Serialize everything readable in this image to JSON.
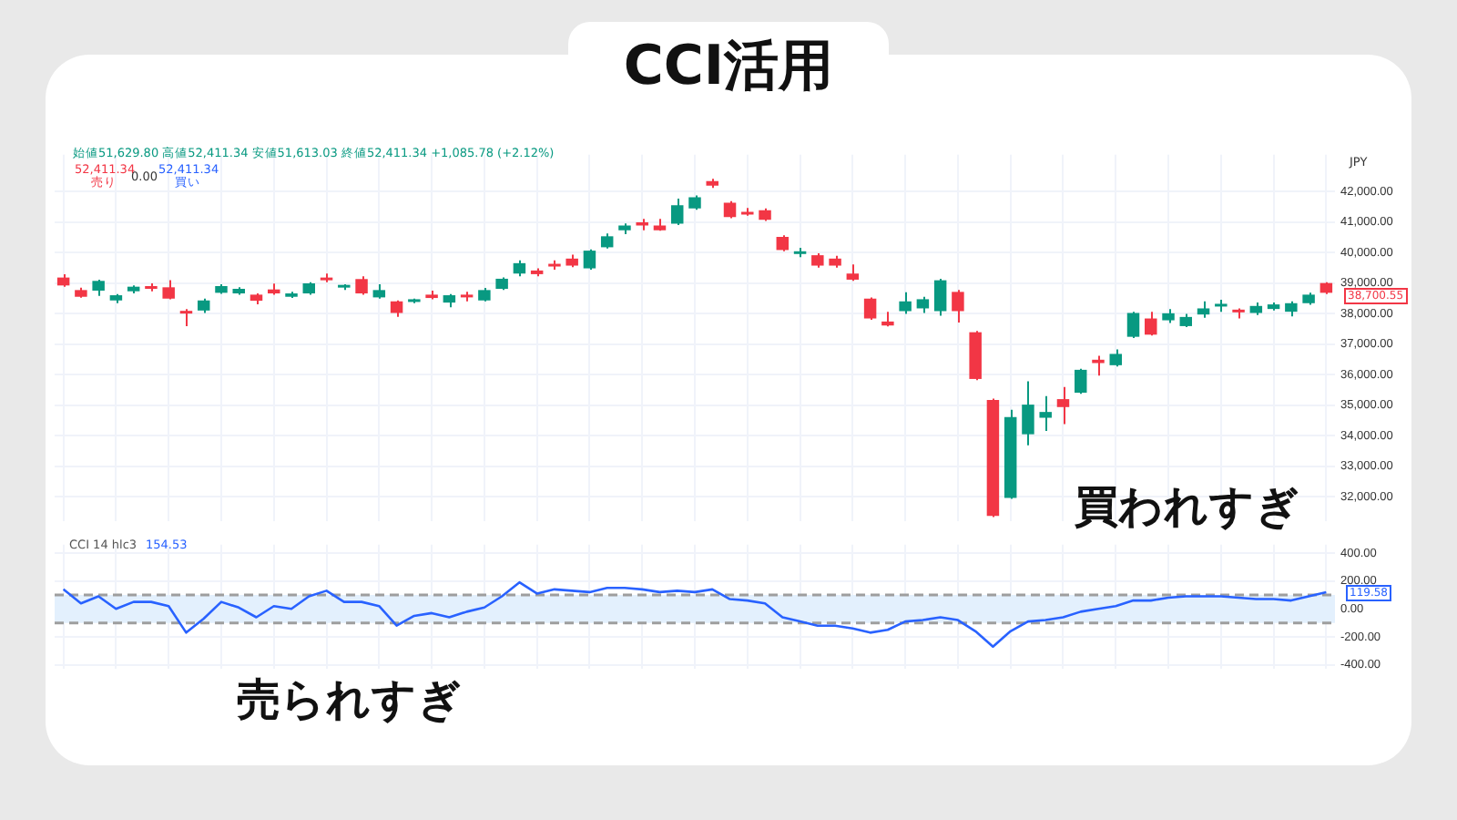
{
  "chart_data": [
    {
      "type": "candlestick",
      "title": "CCI活用",
      "categories": [
        null,
        null,
        null,
        null,
        null,
        null,
        null,
        null,
        null,
        null,
        null,
        null,
        null,
        null,
        null,
        null,
        null,
        null,
        null,
        null,
        null,
        null,
        null,
        null,
        null,
        null,
        null,
        null,
        null,
        null,
        null,
        null,
        null,
        null,
        null,
        null,
        null,
        null,
        null,
        null,
        null,
        null,
        null,
        null,
        null,
        null,
        null,
        null,
        null,
        null,
        null,
        null,
        null,
        null,
        null,
        null,
        null,
        null,
        null,
        null,
        null,
        null,
        null,
        null,
        null,
        null,
        null,
        null,
        null,
        null,
        null,
        null,
        null
      ],
      "ohlc": [
        [
          39180,
          39290,
          38880,
          38920
        ],
        [
          38770,
          38850,
          38520,
          38550
        ],
        [
          38750,
          39110,
          38580,
          39070
        ],
        [
          38430,
          38640,
          38340,
          38600
        ],
        [
          38730,
          38920,
          38660,
          38880
        ],
        [
          38880,
          38990,
          38730,
          38810
        ],
        [
          38860,
          39090,
          38470,
          38490
        ],
        [
          38080,
          38150,
          37590,
          38000
        ],
        [
          38100,
          38490,
          38020,
          38430
        ],
        [
          38680,
          38960,
          38650,
          38900
        ],
        [
          38660,
          38860,
          38620,
          38810
        ],
        [
          38620,
          38660,
          38300,
          38420
        ],
        [
          38790,
          38980,
          38620,
          38660
        ],
        [
          38550,
          38710,
          38510,
          38660
        ],
        [
          38660,
          39030,
          38620,
          38990
        ],
        [
          39140,
          39310,
          39030,
          39090
        ],
        [
          38850,
          38960,
          38770,
          38880
        ],
        [
          39130,
          39220,
          38620,
          38660
        ],
        [
          38530,
          38960,
          38490,
          38770
        ],
        [
          38400,
          38430,
          37890,
          38020
        ],
        [
          38380,
          38490,
          38340,
          38450
        ],
        [
          38620,
          38750,
          38470,
          38510
        ],
        [
          38360,
          38640,
          38210,
          38600
        ],
        [
          38570,
          38710,
          38400,
          38530
        ],
        [
          38430,
          38840,
          38400,
          38770
        ],
        [
          38810,
          39180,
          38770,
          39140
        ],
        [
          39310,
          39740,
          39220,
          39650
        ],
        [
          39410,
          39480,
          39220,
          39290
        ],
        [
          39590,
          39740,
          39440,
          39540
        ],
        [
          39800,
          39930,
          39520,
          39570
        ],
        [
          39480,
          40100,
          39440,
          40060
        ],
        [
          40170,
          40620,
          40130,
          40530
        ],
        [
          40730,
          40950,
          40600,
          40880
        ],
        [
          40990,
          41100,
          40730,
          40880
        ],
        [
          40880,
          41100,
          40710,
          40730
        ],
        [
          40940,
          41760,
          40900,
          41550
        ],
        [
          41440,
          41870,
          41400,
          41810
        ],
        [
          42340,
          42410,
          42110,
          42190
        ],
        [
          41630,
          41680,
          41120,
          41160
        ],
        [
          41330,
          41460,
          41200,
          41240
        ],
        [
          41380,
          41440,
          41030,
          41070
        ],
        [
          40510,
          40560,
          40040,
          40080
        ],
        [
          39950,
          40150,
          39850,
          40020
        ],
        [
          39910,
          39970,
          39500,
          39570
        ],
        [
          39800,
          39890,
          39500,
          39570
        ],
        [
          39310,
          39610,
          39070,
          39110
        ],
        [
          38490,
          38530,
          37800,
          37840
        ],
        [
          37740,
          38060,
          37580,
          37610
        ],
        [
          38080,
          38700,
          37990,
          38400
        ],
        [
          38170,
          38550,
          38020,
          38470
        ],
        [
          38080,
          39140,
          37930,
          39090
        ],
        [
          38710,
          38770,
          37710,
          38080
        ],
        [
          37390,
          37430,
          35820,
          35860
        ],
        [
          35170,
          35220,
          31340,
          31380
        ],
        [
          31970,
          34850,
          31940,
          34610
        ],
        [
          34050,
          35780,
          33690,
          35020
        ],
        [
          34590,
          35300,
          34160,
          34780
        ],
        [
          35200,
          35600,
          34380,
          34940
        ],
        [
          35410,
          36190,
          35370,
          36160
        ],
        [
          36490,
          36620,
          35970,
          36380
        ],
        [
          36310,
          36830,
          36270,
          36680
        ],
        [
          37240,
          38060,
          37200,
          38020
        ],
        [
          37840,
          38060,
          37280,
          37310
        ],
        [
          37780,
          38150,
          37690,
          38010
        ],
        [
          37590,
          37990,
          37560,
          37890
        ],
        [
          37970,
          38400,
          37860,
          38170
        ],
        [
          38230,
          38450,
          38060,
          38320
        ],
        [
          38120,
          38170,
          37840,
          38040
        ],
        [
          38020,
          38360,
          37950,
          38250
        ],
        [
          38150,
          38360,
          38100,
          38300
        ],
        [
          38060,
          38400,
          37910,
          38340
        ],
        [
          38340,
          38680,
          38290,
          38620
        ],
        [
          39000,
          39030,
          38640,
          38680
        ]
      ],
      "colors": [
        "#f23645",
        "#f23645",
        "#089981",
        "#089981",
        "#089981",
        "#f23645",
        "#f23645",
        "#f23645",
        "#089981",
        "#089981",
        "#089981",
        "#f23645",
        "#f23645",
        "#089981",
        "#089981",
        "#f23645",
        "#089981",
        "#f23645",
        "#089981",
        "#f23645",
        "#089981",
        "#f23645",
        "#089981",
        "#f23645",
        "#089981",
        "#089981",
        "#089981",
        "#f23645",
        "#f23645",
        "#f23645",
        "#089981",
        "#089981",
        "#089981",
        "#f23645",
        "#f23645",
        "#089981",
        "#089981",
        "#f23645",
        "#f23645",
        "#f23645",
        "#f23645",
        "#f23645",
        "#089981",
        "#f23645",
        "#f23645",
        "#f23645",
        "#f23645",
        "#f23645",
        "#089981",
        "#089981",
        "#089981",
        "#f23645",
        "#f23645",
        "#f23645",
        "#089981",
        "#089981",
        "#089981",
        "#f23645",
        "#089981",
        "#f23645",
        "#089981",
        "#089981",
        "#f23645",
        "#089981",
        "#089981",
        "#089981",
        "#089981",
        "#f23645",
        "#089981",
        "#089981",
        "#089981",
        "#089981",
        "#f23645"
      ],
      "ylim": [
        31200,
        43200
      ],
      "yticks": [
        {
          "value": 32000,
          "label": "32,000.00"
        },
        {
          "value": 33000,
          "label": "33,000.00"
        },
        {
          "value": 34000,
          "label": "34,000.00"
        },
        {
          "value": 35000,
          "label": "35,000.00"
        },
        {
          "value": 36000,
          "label": "36,000.00"
        },
        {
          "value": 37000,
          "label": "37,000.00"
        },
        {
          "value": 38000,
          "label": "38,000.00"
        },
        {
          "value": 39000,
          "label": "39,000.00"
        },
        {
          "value": 40000,
          "label": "40,000.00"
        },
        {
          "value": 41000,
          "label": "41,000.00"
        },
        {
          "value": 42000,
          "label": "42,000.00"
        }
      ],
      "grid": true,
      "tick_labels": "y",
      "annotations": [
        "始値51,629.80 高値52,411.34 安値51,613.03 終値52,411.34 +1,085.78 (+2.12%)",
        "52,411.34",
        "売り",
        "0.00",
        "52,411.34",
        "買い",
        "JPY",
        "38,700.55",
        "買われすぎ"
      ]
    },
    {
      "type": "line",
      "categories": [
        null,
        null,
        null,
        null,
        null,
        null,
        null,
        null,
        null,
        null,
        null,
        null,
        null,
        null,
        null,
        null,
        null,
        null,
        null,
        null,
        null,
        null,
        null,
        null,
        null,
        null,
        null,
        null,
        null,
        null,
        null,
        null,
        null,
        null,
        null,
        null,
        null,
        null,
        null,
        null,
        null,
        null,
        null,
        null,
        null,
        null,
        null,
        null,
        null,
        null,
        null,
        null,
        null,
        null,
        null,
        null,
        null,
        null,
        null,
        null,
        null,
        null,
        null,
        null,
        null,
        null,
        null,
        null,
        null,
        null,
        null,
        null,
        null
      ],
      "series": [
        {
          "color": "#2962ff",
          "values": [
            140,
            40,
            90,
            0,
            50,
            50,
            20,
            -170,
            -70,
            50,
            10,
            -60,
            20,
            0,
            90,
            130,
            50,
            50,
            20,
            -120,
            -50,
            -30,
            -60,
            -20,
            10,
            90,
            190,
            110,
            140,
            130,
            120,
            150,
            150,
            140,
            120,
            130,
            120,
            140,
            70,
            60,
            40,
            -60,
            -90,
            -120,
            -120,
            -140,
            -170,
            -150,
            -90,
            -80,
            -60,
            -80,
            -160,
            -270,
            -160,
            -90,
            -80,
            -60,
            -20,
            0,
            20,
            60,
            60,
            80,
            90,
            90,
            90,
            80,
            70,
            70,
            60,
            90,
            120
          ]
        }
      ],
      "ylim": [
        -430,
        460
      ],
      "yticks": [
        {
          "value": -400,
          "label": "-400.00"
        },
        {
          "value": -200,
          "label": "-200.00"
        },
        {
          "value": 0,
          "label": "0.00"
        },
        {
          "value": 200,
          "label": "200.00"
        },
        {
          "value": 400,
          "label": "400.00"
        }
      ],
      "bands": [
        {
          "axis": "y",
          "from": -100,
          "to": 100,
          "color": "#e3f0fd"
        }
      ],
      "ref_lines": [
        {
          "axis": "y",
          "value": 100,
          "color": "#9e9e9e",
          "line_style": "dashed"
        },
        {
          "axis": "y",
          "value": -100,
          "color": "#9e9e9e",
          "line_style": "dashed"
        }
      ],
      "marker": "none",
      "line_style": "solid",
      "grid": true,
      "tick_labels": "y",
      "annotations": [
        "CCI 14 hlc3",
        "154.53",
        "119.58",
        "売られすぎ"
      ]
    }
  ]
}
